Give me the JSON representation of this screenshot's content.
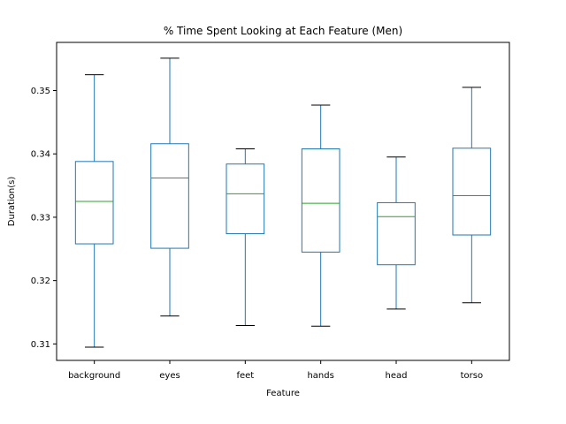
{
  "chart_data": {
    "type": "box",
    "title": "% Time Spent Looking at Each Feature (Men)",
    "xlabel": "Feature",
    "ylabel": "Duration(s)",
    "ylim": [
      0.3074,
      0.3576
    ],
    "yticks": [
      0.31,
      0.32,
      0.33,
      0.34,
      0.35
    ],
    "ytick_labels": [
      "0.31",
      "0.32",
      "0.33",
      "0.34",
      "0.35"
    ],
    "grid": false,
    "categories": [
      "background",
      "eyes",
      "feet",
      "hands",
      "head",
      "torso"
    ],
    "boxes": [
      {
        "category": "background",
        "whislo": 0.3095,
        "q1": 0.3258,
        "med": 0.3325,
        "q3": 0.3388,
        "whishi": 0.3525
      },
      {
        "category": "eyes",
        "whislo": 0.3144,
        "q1": 0.3251,
        "med": 0.3362,
        "q3": 0.3416,
        "whishi": 0.3551
      },
      {
        "category": "feet",
        "whislo": 0.3129,
        "q1": 0.3274,
        "med": 0.3337,
        "q3": 0.3384,
        "whishi": 0.3408
      },
      {
        "category": "hands",
        "whislo": 0.3128,
        "q1": 0.3245,
        "med": 0.3322,
        "q3": 0.3408,
        "whishi": 0.3477
      },
      {
        "category": "head",
        "whislo": 0.3155,
        "q1": 0.3225,
        "med": 0.3301,
        "q3": 0.3323,
        "whishi": 0.3395
      },
      {
        "category": "torso",
        "whislo": 0.3165,
        "q1": 0.3272,
        "med": 0.3334,
        "q3": 0.3409,
        "whishi": 0.3505
      }
    ],
    "colors": {
      "box": "#1f77b4",
      "median": "#2ca02c",
      "cap": "#000000"
    }
  }
}
